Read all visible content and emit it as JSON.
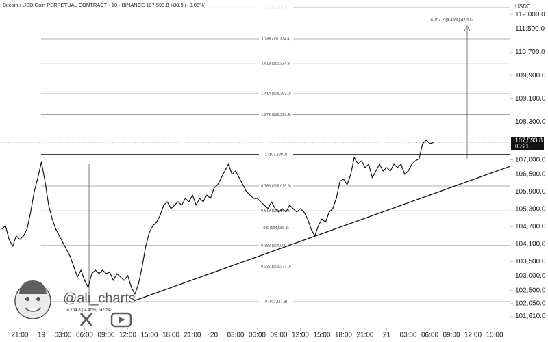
{
  "chart_data": {
    "type": "line",
    "title": "Bitcoin / USD Coin PERPETUAL CONTRACT · 10 · BINANCE  107,593.8  +80.9 (+0.08%)",
    "currency": "USDC",
    "color": "#111111",
    "x": [
      -2.5,
      -2,
      -1.5,
      -1,
      -0.5,
      0,
      0.5,
      1,
      1.5,
      2,
      2.5,
      3,
      3.5,
      4,
      4.5,
      5,
      5.5,
      6,
      6.5,
      7,
      7.5,
      8,
      8.5,
      9,
      9.5,
      10,
      10.5,
      11,
      11.5,
      12,
      12.5,
      13,
      13.5,
      14,
      14.5,
      15,
      15.5,
      16,
      16.5,
      17,
      17.5,
      18,
      18.5,
      19,
      19.5,
      20,
      20.5,
      21,
      21.5,
      22,
      22.5,
      23,
      23.5,
      24,
      24.5,
      25,
      25.5,
      26,
      26.5,
      27,
      27.5,
      28,
      28.5,
      29,
      29.5,
      30,
      30.5,
      31,
      31.5,
      32,
      32.5,
      33,
      33.5,
      34,
      34.5,
      35,
      35.5,
      36,
      36.5,
      37,
      37.5,
      38,
      38.5,
      39,
      39.5,
      40,
      40.5,
      41,
      41.5,
      42,
      42.5,
      43,
      43.5,
      44,
      44.5,
      45,
      45.5,
      46,
      46.5,
      47,
      47.5,
      48,
      48.5,
      49,
      49.5,
      50,
      50.5,
      51,
      51.5,
      52,
      52.5,
      53,
      53.5,
      54,
      54.5,
      55,
      55.5,
      56,
      56.5,
      57,
      57.5
    ],
    "values": [
      104614,
      104732,
      104261,
      104026,
      104379,
      104261,
      104379,
      104614,
      105203,
      105909,
      106380,
      106921,
      106262,
      105438,
      104967,
      104614,
      104379,
      104143,
      103908,
      103673,
      103320,
      102966,
      103202,
      102849,
      102613,
      103084,
      103202,
      103084,
      103202,
      103084,
      103131,
      102849,
      103084,
      102966,
      102849,
      103020,
      102613,
      102378,
      102731,
      103320,
      104026,
      104496,
      104732,
      104850,
      105085,
      105438,
      105556,
      105321,
      105438,
      105556,
      105438,
      105673,
      105556,
      105791,
      105438,
      105673,
      105556,
      105791,
      105673,
      106027,
      106144,
      106380,
      106615,
      106850,
      106497,
      106615,
      106380,
      106144,
      105909,
      105791,
      105673,
      105673,
      105556,
      105438,
      105321,
      105556,
      105321,
      105203,
      105321,
      105203,
      105438,
      105321,
      105203,
      105321,
      105203,
      104967,
      104614,
      104379,
      104732,
      104967,
      104850,
      105203,
      105321,
      105673,
      106262,
      106333,
      106144,
      106497,
      107086,
      106850,
      106968,
      106733,
      106850,
      106380,
      106615,
      106850,
      106615,
      106733,
      106615,
      106850,
      106733,
      106850,
      106497,
      106615,
      106850,
      106968,
      107039,
      107557,
      107674,
      107557,
      107593.8
    ],
    "xlim": [
      -2.76,
      68.19
    ],
    "xticks": [
      {
        "value": 0,
        "label": "21:00"
      },
      {
        "value": 3,
        "label": "19"
      },
      {
        "value": 6,
        "label": "03:00"
      },
      {
        "value": 9,
        "label": "06:00"
      },
      {
        "value": 12,
        "label": "09:00"
      },
      {
        "value": 15,
        "label": "12:00"
      },
      {
        "value": 18,
        "label": "15:00"
      },
      {
        "value": 21,
        "label": "18:00"
      },
      {
        "value": 24,
        "label": "21:00"
      },
      {
        "value": 27,
        "label": "20"
      },
      {
        "value": 30,
        "label": "03:00"
      },
      {
        "value": 33,
        "label": "06:00"
      },
      {
        "value": 36,
        "label": "09:00"
      },
      {
        "value": 39,
        "label": "12:00"
      },
      {
        "value": 42,
        "label": "15:00"
      },
      {
        "value": 45,
        "label": "18:00"
      },
      {
        "value": 48,
        "label": "21:00"
      },
      {
        "value": 51,
        "label": "21"
      },
      {
        "value": 54,
        "label": "03:00"
      },
      {
        "value": 57,
        "label": "06:00"
      },
      {
        "value": 60,
        "label": "09:00"
      },
      {
        "value": 63,
        "label": "12:00"
      },
      {
        "value": 66,
        "label": "15:00"
      }
    ],
    "ylim": [
      101200,
      112500
    ],
    "yticks": [
      {
        "value": 112000,
        "label": "112,000.0"
      },
      {
        "value": 111500,
        "label": "111,500.0"
      },
      {
        "value": 110700,
        "label": "110,700.0"
      },
      {
        "value": 109900,
        "label": "109,900.0"
      },
      {
        "value": 109100,
        "label": "109,100.0"
      },
      {
        "value": 108300,
        "label": "108,300.0"
      },
      {
        "value": 107000,
        "label": "107,000.0"
      },
      {
        "value": 106500,
        "label": "106,500.0"
      },
      {
        "value": 105900,
        "label": "105,900.0"
      },
      {
        "value": 105300,
        "label": "105,300.0"
      },
      {
        "value": 104700,
        "label": "104,700.0"
      },
      {
        "value": 104100,
        "label": "104,100.0"
      },
      {
        "value": 103500,
        "label": "103,500.0"
      },
      {
        "value": 103000,
        "label": "103,000.0"
      },
      {
        "value": 102500,
        "label": "102,500.0"
      },
      {
        "value": 102050,
        "label": "102,050.0"
      },
      {
        "value": 101610,
        "label": "101,610.0"
      }
    ],
    "grid": false,
    "last_price": {
      "label": "107,593.8",
      "countdown": "05:21"
    },
    "fib_levels": [
      {
        "level": 2,
        "label": "2 (112,968.7)"
      },
      {
        "level": 1.786,
        "label": "1.786 (111,224.4)"
      },
      {
        "level": 1.618,
        "label": "1.618 (110,334.3)"
      },
      {
        "level": 1.414,
        "label": "1.414 (109,263.0)"
      },
      {
        "level": 1.272,
        "label": "1.272 (108,523.4)"
      },
      {
        "level": 1,
        "label": "1 (107,120.7)"
      },
      {
        "level": 0.786,
        "label": "0.786 (106,029.9)"
      },
      {
        "level": 0.618,
        "label": "0.618 (105,167.1)"
      },
      {
        "level": 0.5,
        "label": "0.5 (104,589.3)"
      },
      {
        "level": 0.382,
        "label": "0.382 (104,000.7)"
      },
      {
        "level": 0.236,
        "label": "0.236 (103,277.0)"
      },
      {
        "level": 0,
        "label": "0 (102,117.8)"
      }
    ],
    "annotations": {
      "upper_measure": "4,757.2 (4.45%) 47,572",
      "lower_measure": "-4,754.3 (-4.45%) -47,543"
    },
    "watermark": "@ali_charts"
  }
}
